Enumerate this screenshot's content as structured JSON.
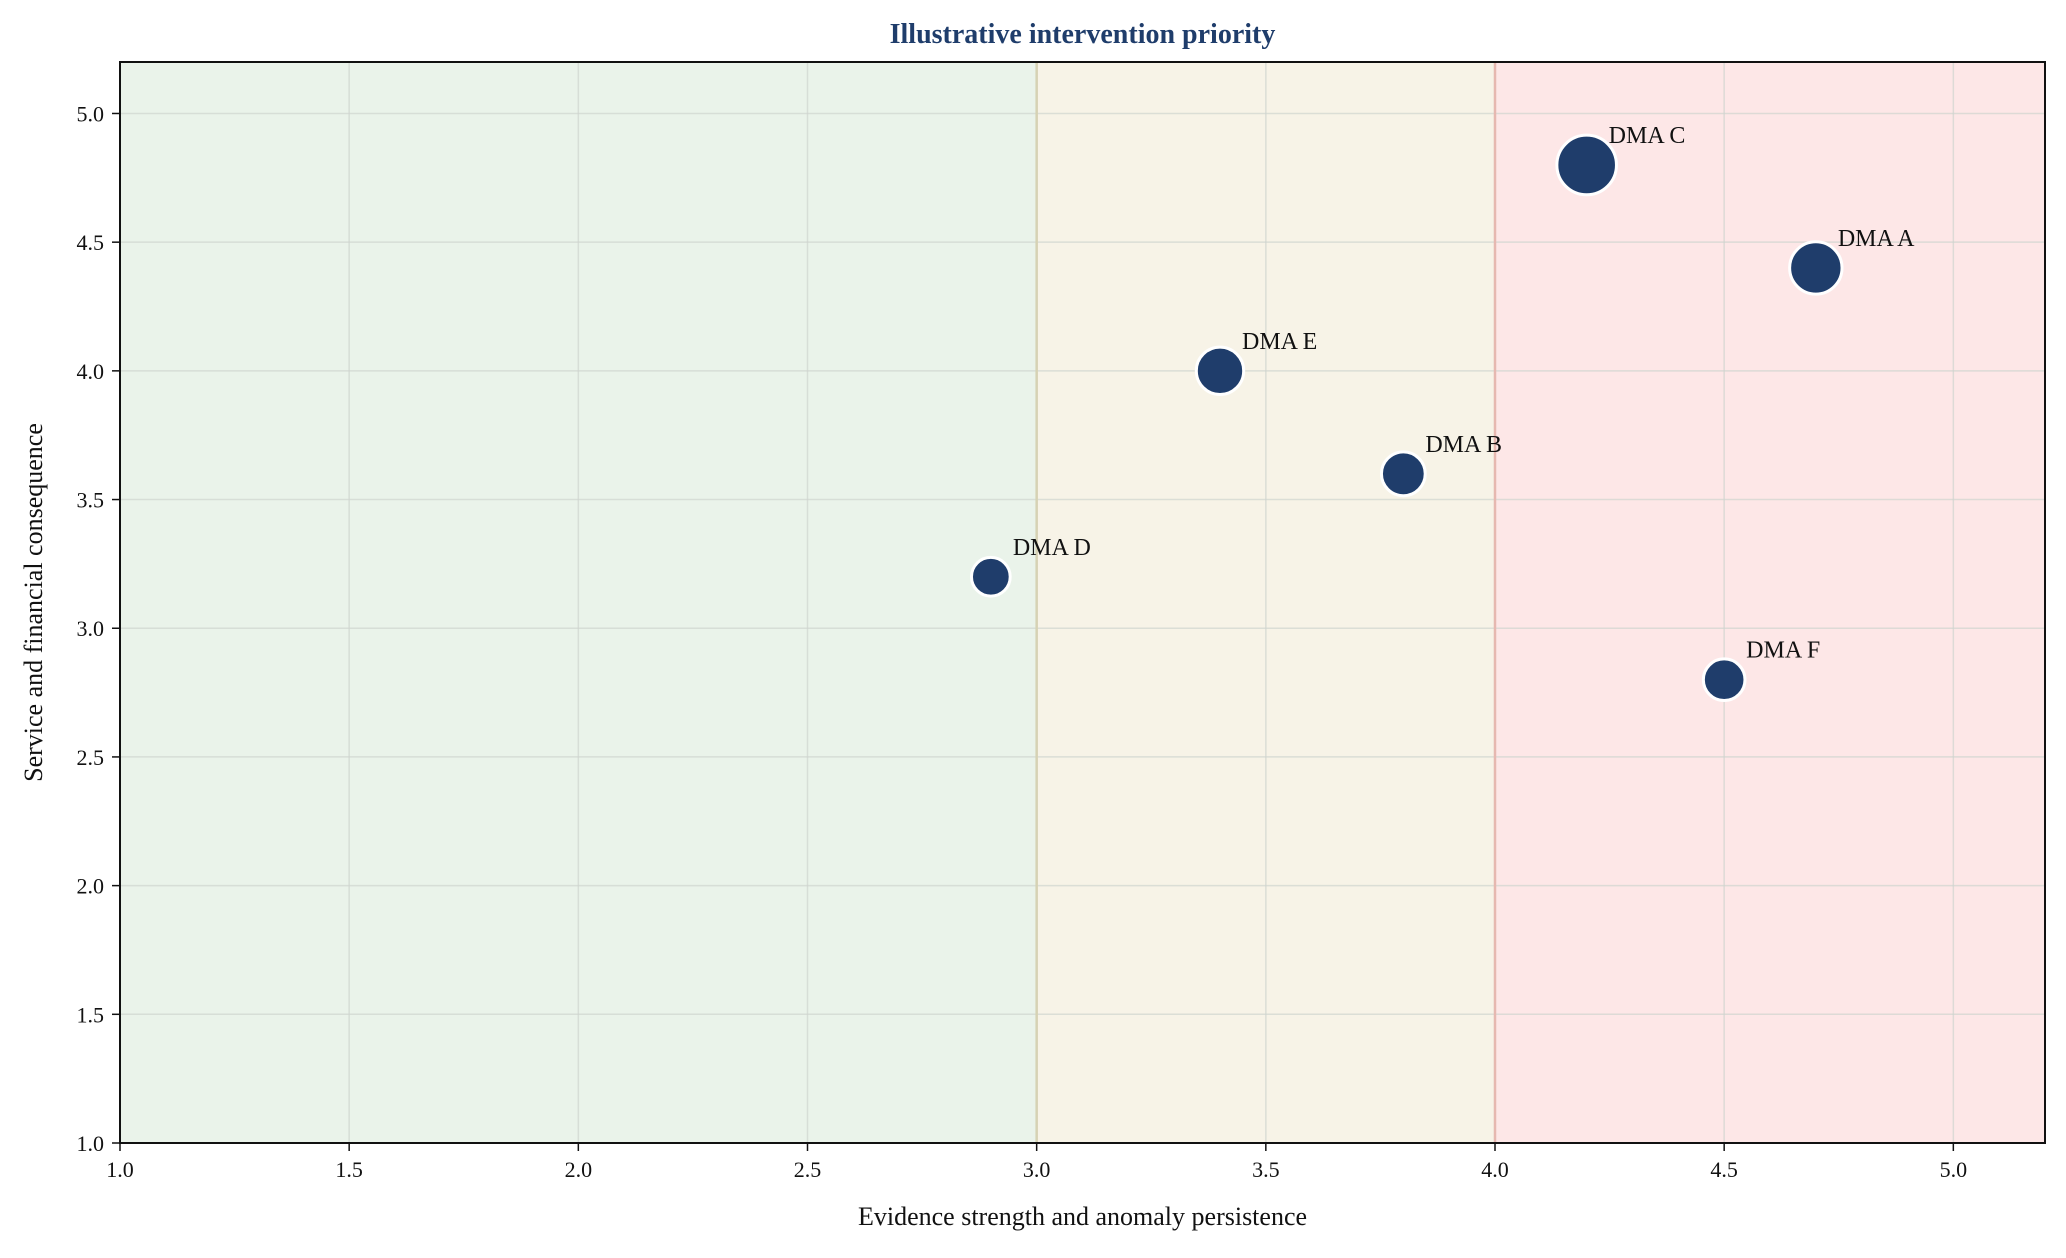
{
  "chart_data": {
    "type": "scatter",
    "title": "Illustrative intervention priority",
    "xlabel": "Evidence strength and anomaly persistence",
    "ylabel": "Service and financial consequence",
    "xlim": [
      1.0,
      5.2
    ],
    "ylim": [
      1.0,
      5.2
    ],
    "xticks": [
      "1.0",
      "1.5",
      "2.0",
      "2.5",
      "3.0",
      "3.5",
      "4.0",
      "4.5",
      "5.0"
    ],
    "yticks": [
      "1.0",
      "1.5",
      "2.0",
      "2.5",
      "3.0",
      "3.5",
      "4.0",
      "4.5",
      "5.0"
    ],
    "grid": true,
    "zones": [
      {
        "from": 1.0,
        "to": 3.0,
        "color": "#eaf3ea"
      },
      {
        "from": 3.0,
        "to": 4.0,
        "color": "#f7f3e7"
      },
      {
        "from": 4.0,
        "to": 5.2,
        "color": "#fde7e7"
      }
    ],
    "zone_boundaries": [
      {
        "x": 3.0,
        "color": "#d6d2b4"
      },
      {
        "x": 4.0,
        "color": "#e6b8b0"
      }
    ],
    "points": [
      {
        "label": "DMA A",
        "x": 4.7,
        "y": 4.4,
        "size": 4.5
      },
      {
        "label": "DMA B",
        "x": 3.8,
        "y": 3.6,
        "size": 3.3
      },
      {
        "label": "DMA C",
        "x": 4.2,
        "y": 4.8,
        "size": 5.5
      },
      {
        "label": "DMA D",
        "x": 2.9,
        "y": 3.2,
        "size": 2.6
      },
      {
        "label": "DMA E",
        "x": 3.4,
        "y": 4.0,
        "size": 3.8
      },
      {
        "label": "DMA F",
        "x": 4.5,
        "y": 2.8,
        "size": 3.0
      }
    ],
    "colors": {
      "marker": "#1f3d6b",
      "marker_edge": "#ffffff",
      "title": "#1f3d6b",
      "grid": "#cfd4cf",
      "axes": "#111111"
    }
  }
}
